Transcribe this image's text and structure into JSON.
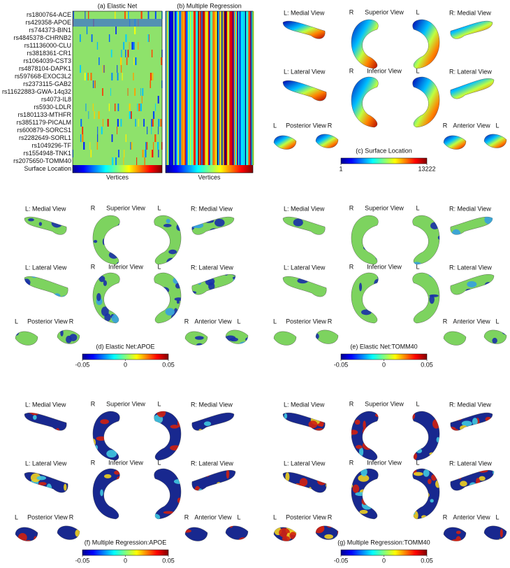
{
  "heatmaps": {
    "snp_labels": [
      "rs1800764-ACE",
      "rs429358-APOE",
      "rs744373-BIN1",
      "rs4845378-CHRNB2",
      "rs11136000-CLU",
      "rs3818361-CR1",
      "rs1064039-CST3",
      "rs4878104-DAPK1",
      "rs597668-EXOC3L2",
      "rs2373115-GAB2",
      "rs11622883-GWA-14q32",
      "rs4073-IL8",
      "rs5930-LDLR",
      "rs1801133-MTHFR",
      "rs3851179-PICALM",
      "rs600879-SORCS1",
      "rs2282649-SORL1",
      "rs1049296-TF",
      "rs1554948-TNK1",
      "rs2075650-TOMM40",
      "Surface Location"
    ],
    "panels": [
      {
        "title": "(a) Elastic Net",
        "xlabel": "Vertices"
      },
      {
        "title": "(b) Multiple Regression",
        "xlabel": "Vertices"
      }
    ]
  },
  "surface_panels": [
    {
      "title": "(c) Surface Location",
      "colorbar_ticks": [
        "1",
        "13222"
      ],
      "view_labels": [
        "L: Medial View",
        "R",
        "Superior View",
        "L",
        "R: Medial View",
        "L: Lateral View",
        "R",
        "Inferior View",
        "L",
        "R: Lateral View",
        "L",
        "Posterior View",
        "R",
        "R",
        "Anterior View",
        "L"
      ]
    },
    {
      "title": "(d) Elastic Net:APOE",
      "colorbar_ticks": [
        "-0.05",
        "0",
        "0.05"
      ],
      "view_labels": [
        "L: Medial View",
        "R",
        "Superior View",
        "L",
        "R: Medial View",
        "L: Lateral View",
        "R",
        "Inferior View",
        "L",
        "R: Lateral View",
        "L",
        "Posterior View",
        "R",
        "R",
        "Anterior View",
        "L"
      ]
    },
    {
      "title": "(e) Elastic Net:TOMM40",
      "colorbar_ticks": [
        "-0.05",
        "0",
        "0.05"
      ],
      "view_labels": [
        "L: Medial View",
        "R",
        "Superior View",
        "L",
        "R: Medial View",
        "L: Lateral View",
        "R",
        "Inferior View",
        "L",
        "R: Lateral View",
        "L",
        "Posterior View",
        "R",
        "R",
        "Anterior View",
        "L"
      ]
    },
    {
      "title": "(f) Multiple Regression:APOE",
      "colorbar_ticks": [
        "-0.05",
        "0",
        "0.05"
      ],
      "view_labels": [
        "L: Medial View",
        "R",
        "Superior View",
        "L",
        "R: Medial View",
        "L: Lateral View",
        "R",
        "Inferior View",
        "L",
        "R: Lateral View",
        "L",
        "Posterior View",
        "R",
        "R",
        "Anterior View",
        "L"
      ]
    },
    {
      "title": "(g) Multiple Regression:TOMM40",
      "colorbar_ticks": [
        "-0.05",
        "0",
        "0.05"
      ],
      "view_labels": [
        "L: Medial View",
        "R",
        "Superior View",
        "L",
        "R: Medial View",
        "L: Lateral View",
        "R",
        "Inferior View",
        "L",
        "R: Lateral View",
        "L",
        "Posterior View",
        "R",
        "R",
        "Anterior View",
        "L"
      ]
    }
  ]
}
